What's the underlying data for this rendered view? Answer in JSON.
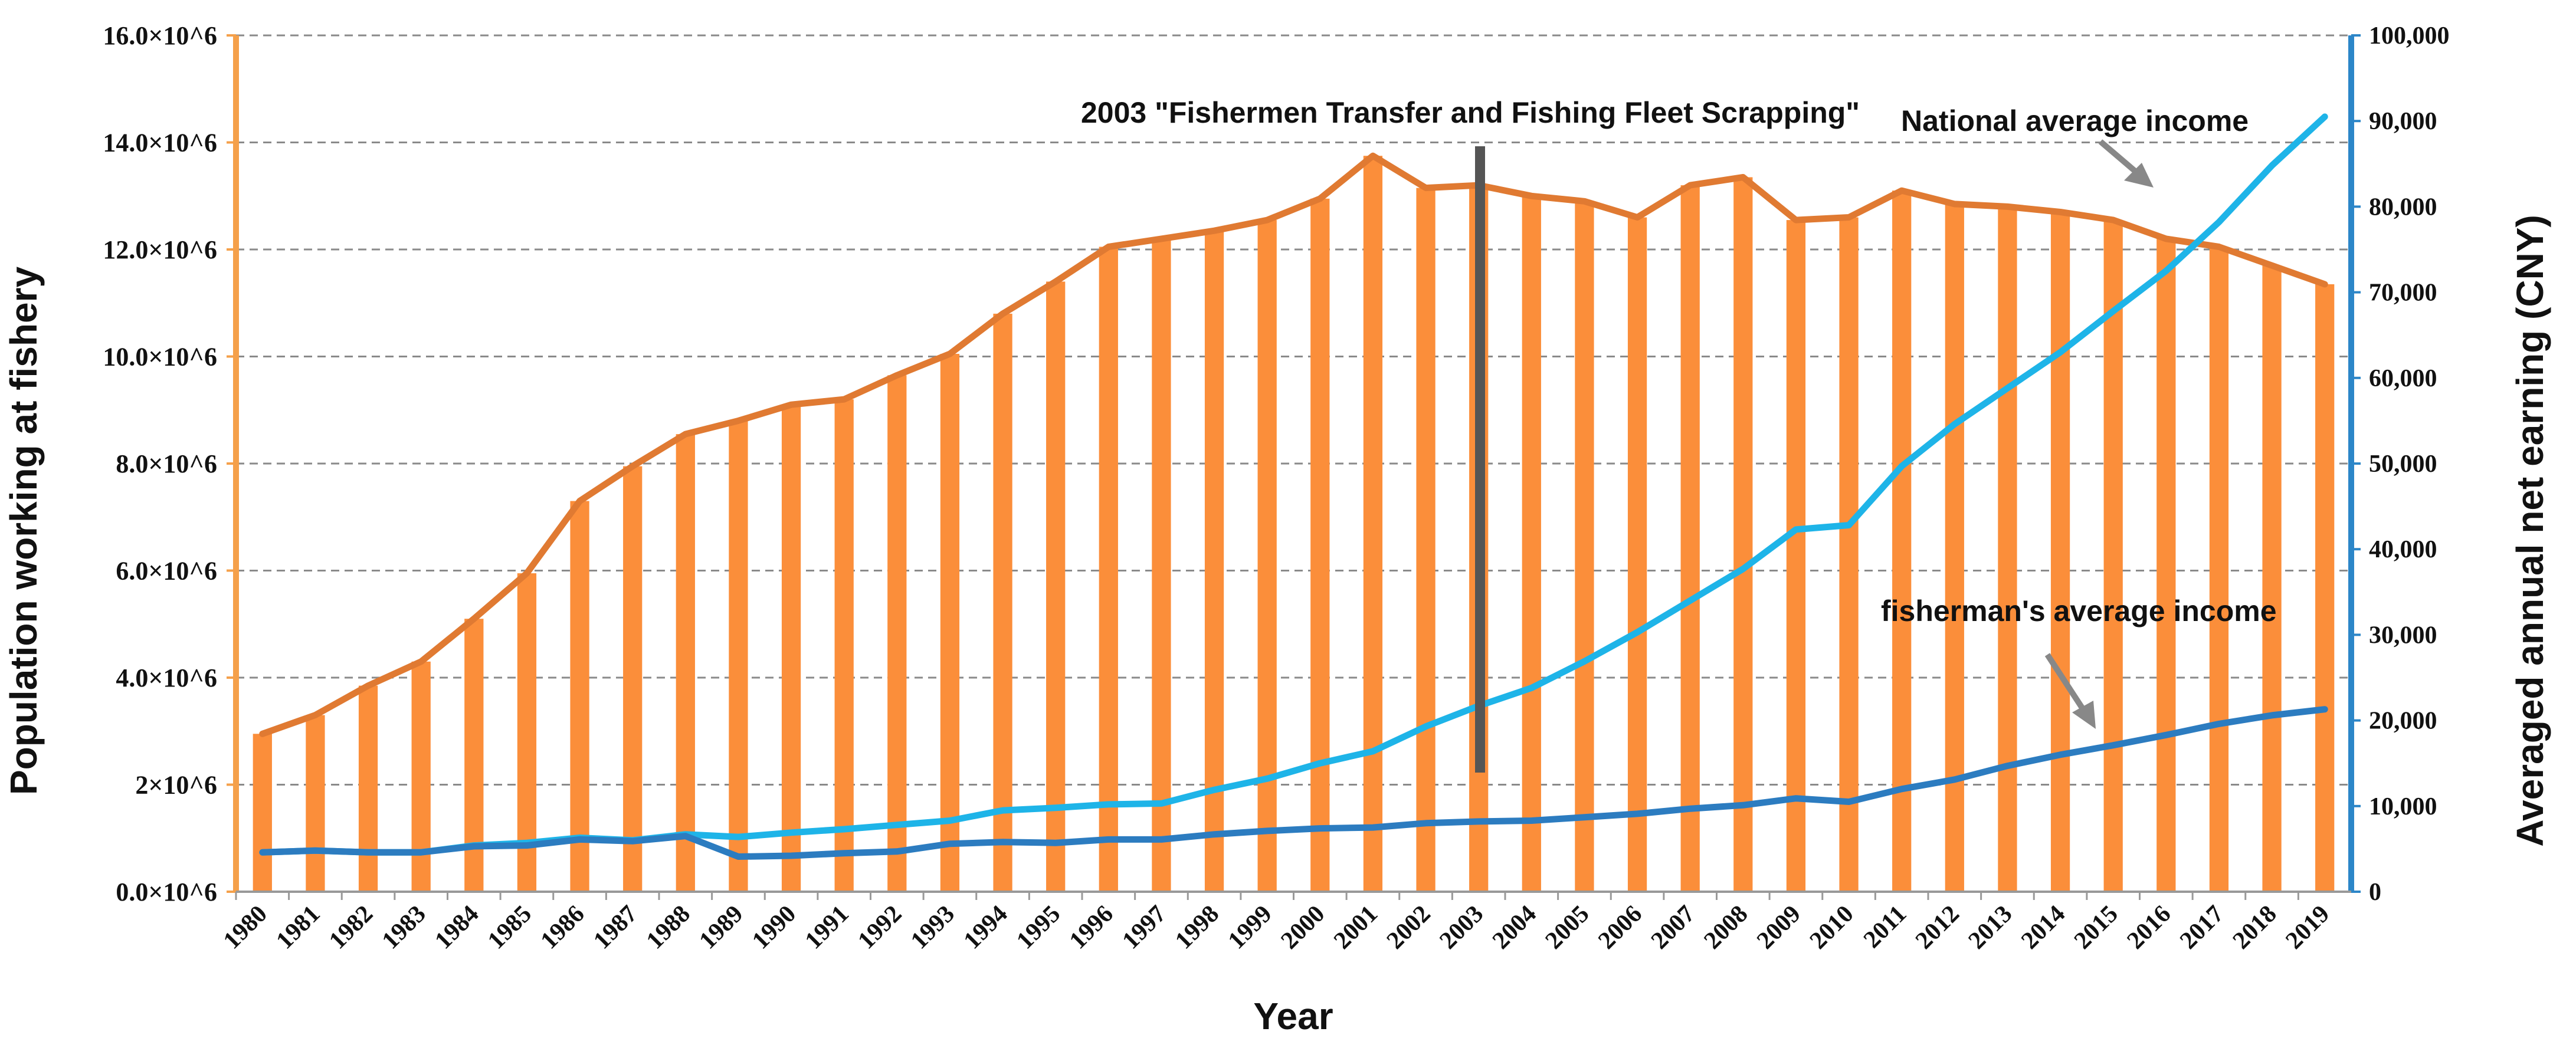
{
  "chart_data": {
    "type": "bar+line",
    "x": [
      "1980",
      "1981",
      "1982",
      "1983",
      "1984",
      "1985",
      "1986",
      "1987",
      "1988",
      "1989",
      "1990",
      "1991",
      "1992",
      "1993",
      "1994",
      "1995",
      "1996",
      "1997",
      "1998",
      "1999",
      "2000",
      "2001",
      "2002",
      "2003",
      "2004",
      "2005",
      "2006",
      "2007",
      "2008",
      "2009",
      "2010",
      "2011",
      "2012",
      "2013",
      "2014",
      "2015",
      "2016",
      "2017",
      "2018",
      "2019"
    ],
    "xlabel": "Year",
    "ylabel_left": "Population working at fishery",
    "ylabel_right": "Averaged annual net earning (CNY)",
    "ylim_left": [
      0,
      16000000
    ],
    "ylim_right": [
      0,
      100000
    ],
    "yticks_left": [
      "0.0×10^6",
      "2×10^6",
      "4.0×10^6",
      "6.0×10^6",
      "8.0×10^6",
      "10.0×10^6",
      "12.0×10^6",
      "14.0×10^6",
      "16.0×10^6"
    ],
    "yticks_right": [
      "0",
      "10,000",
      "20,000",
      "30,000",
      "40,000",
      "50,000",
      "60,000",
      "70,000",
      "80,000",
      "90,000",
      "100,000"
    ],
    "grid": true,
    "series": [
      {
        "name": "Population working at fishery",
        "kind": "bar+line",
        "axis": "left",
        "values": [
          2.95,
          3.3,
          3.85,
          4.3,
          5.1,
          5.95,
          7.3,
          7.95,
          8.55,
          8.8,
          9.1,
          9.2,
          9.65,
          10.05,
          10.8,
          11.4,
          12.05,
          12.2,
          12.35,
          12.55,
          12.95,
          13.75,
          13.15,
          13.2,
          13.0,
          12.9,
          12.6,
          13.2,
          13.35,
          12.55,
          12.6,
          13.1,
          12.85,
          12.8,
          12.7,
          12.55,
          12.2,
          12.05,
          11.7,
          11.35
        ],
        "unit_multiplier": 1000000,
        "bar_color": "#FB8E3A",
        "line_color": "#E07A32"
      },
      {
        "name": "National average income",
        "kind": "line",
        "axis": "right",
        "values": [
          4600,
          4800,
          4600,
          4600,
          5400,
          5700,
          6300,
          6000,
          6700,
          6400,
          6900,
          7300,
          7800,
          8300,
          9500,
          9800,
          10200,
          10300,
          11900,
          13200,
          15000,
          16400,
          19300,
          21700,
          23800,
          26900,
          30300,
          34000,
          37700,
          42300,
          42800,
          49700,
          54600,
          58800,
          63000,
          67800,
          72500,
          78200,
          84800,
          90500
        ],
        "color": "#1EB4E8"
      },
      {
        "name": "fisherman's average income",
        "kind": "line",
        "axis": "right",
        "values": [
          4600,
          4800,
          4600,
          4600,
          5300,
          5400,
          6100,
          5900,
          6500,
          4100,
          4200,
          4500,
          4700,
          5600,
          5800,
          5700,
          6100,
          6100,
          6700,
          7100,
          7400,
          7500,
          8000,
          8200,
          8300,
          8700,
          9100,
          9700,
          10100,
          10900,
          10500,
          12000,
          13100,
          14700,
          16000,
          17100,
          18300,
          19600,
          20600,
          21300
        ],
        "color": "#2C7CC0"
      }
    ],
    "annotations": [
      {
        "text": "2003 \"Fishermen Transfer and Fishing Fleet Scrapping\"",
        "year": "2003"
      },
      {
        "text": "National average income",
        "points_to": "National average income"
      },
      {
        "text": "fisherman's average income",
        "points_to": "fisherman's average income"
      }
    ],
    "colors": {
      "left_axis": "#F5A04A",
      "right_axis": "#2C86C8",
      "grid": "#8A8A8A",
      "marker": "#555555",
      "arrow": "#888888"
    }
  }
}
